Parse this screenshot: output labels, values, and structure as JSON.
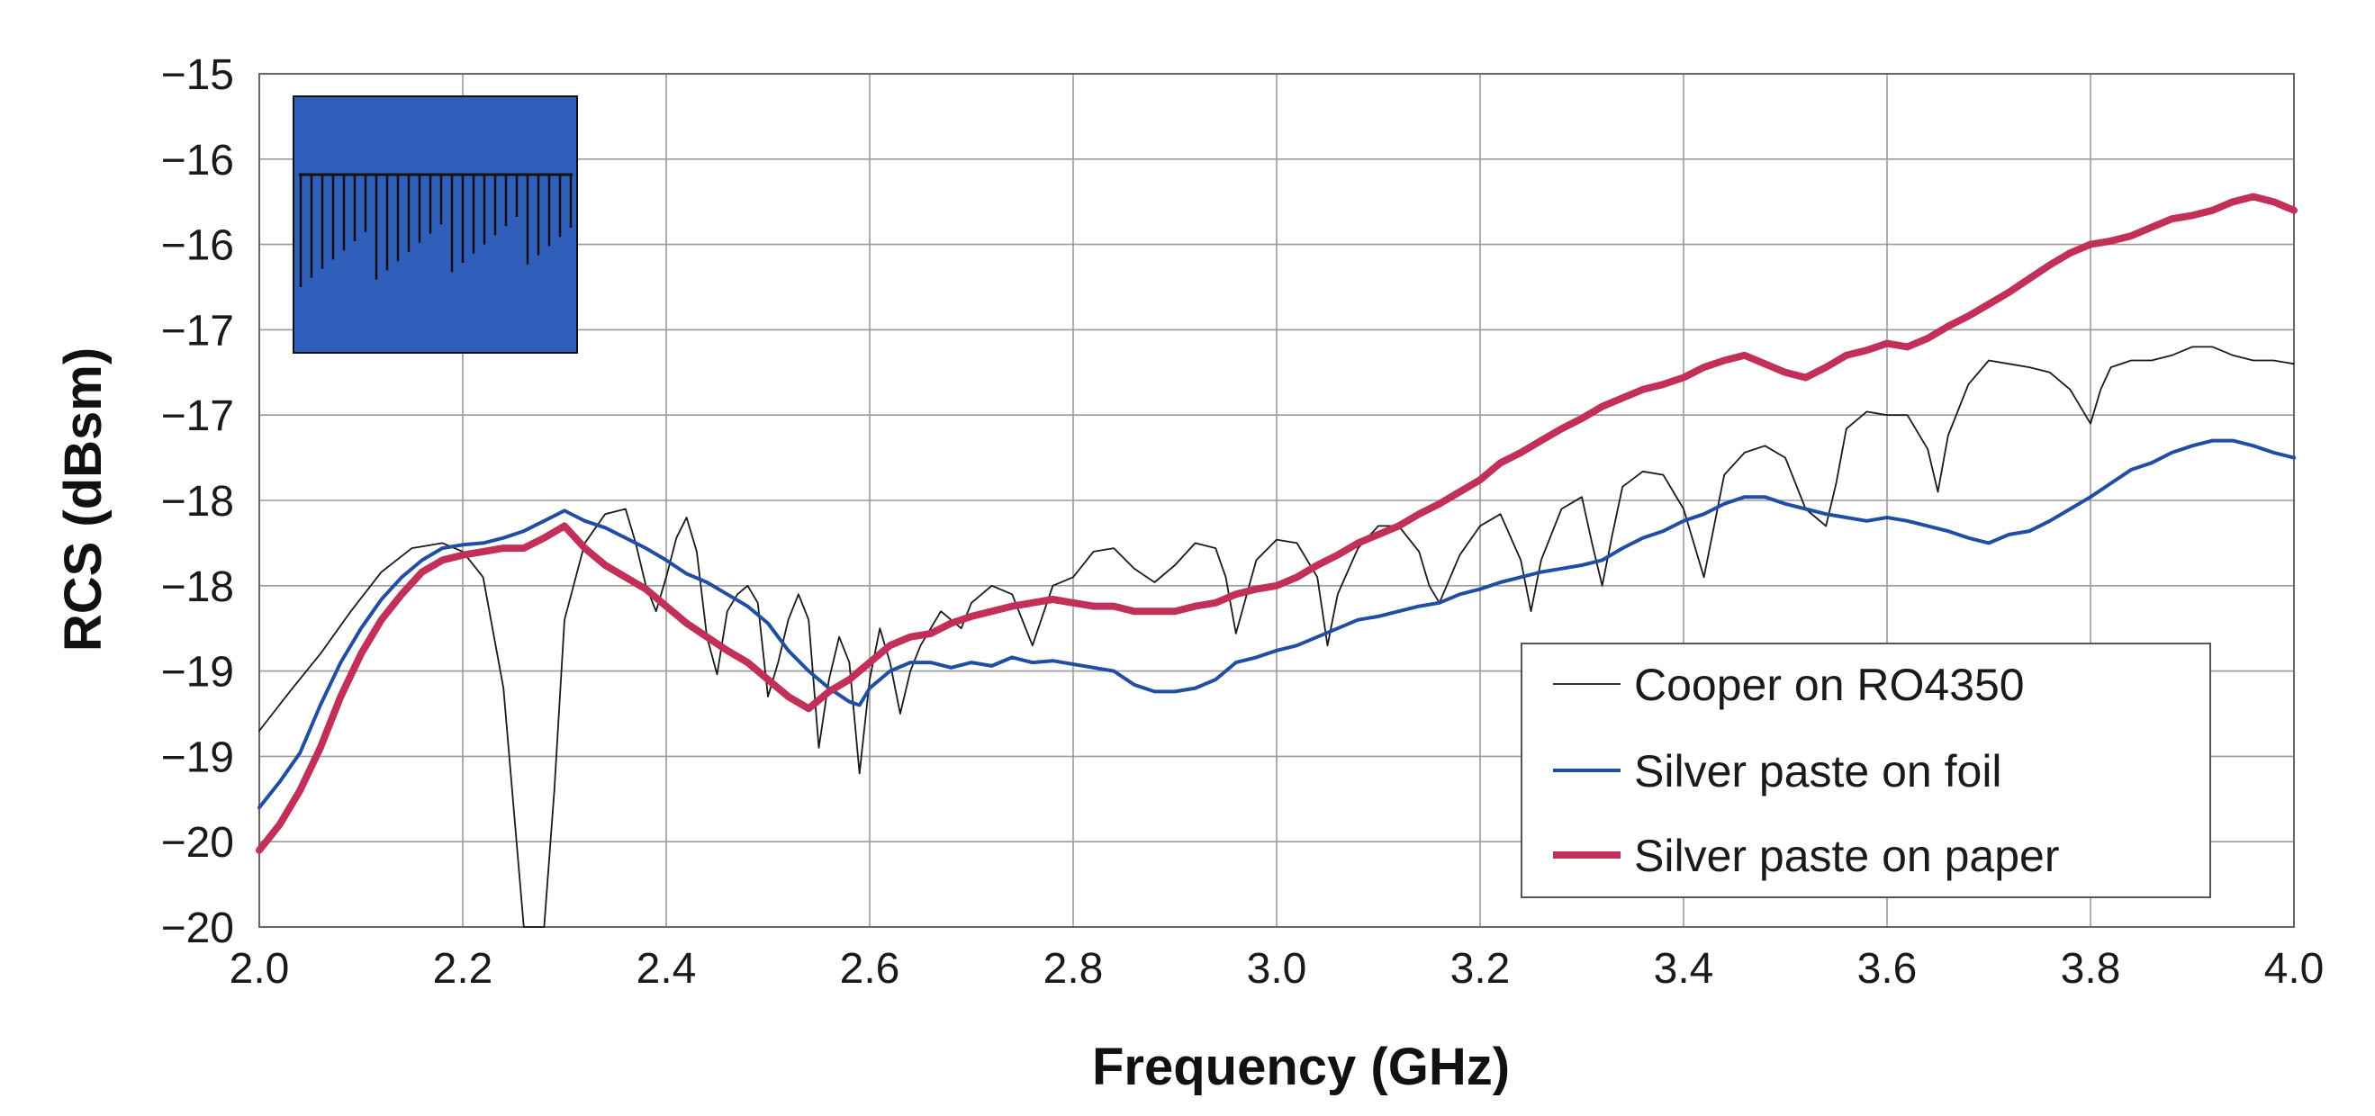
{
  "chart_data": {
    "type": "line",
    "xlabel": "Frequency (GHz)",
    "ylabel": "RCS (dBsm)",
    "xlim": [
      2.0,
      4.0
    ],
    "ylim": [
      -20,
      -15
    ],
    "x_ticks": [
      2.0,
      2.2,
      2.4,
      2.6,
      2.8,
      3.0,
      3.2,
      3.4,
      3.6,
      3.8,
      4.0
    ],
    "x_tick_labels": [
      "2.0",
      "2.2",
      "2.4",
      "2.6",
      "2.8",
      "3.0",
      "3.2",
      "3.4",
      "3.6",
      "3.8",
      "4.0"
    ],
    "y_tick_labels": [
      "−15",
      "−16",
      "−16",
      "−17",
      "−17",
      "−18",
      "−18",
      "−19",
      "−19",
      "−20",
      "−20"
    ],
    "grid": true,
    "legend_position": "bottom-right",
    "series": [
      {
        "name": "Cooper on RO4350",
        "color": "#1a1a1a",
        "line_width": "thin",
        "x": [
          2.0,
          2.03,
          2.06,
          2.09,
          2.12,
          2.15,
          2.18,
          2.2,
          2.22,
          2.24,
          2.25,
          2.26,
          2.27,
          2.28,
          2.29,
          2.3,
          2.32,
          2.34,
          2.36,
          2.37,
          2.38,
          2.39,
          2.4,
          2.41,
          2.42,
          2.43,
          2.44,
          2.45,
          2.46,
          2.47,
          2.48,
          2.49,
          2.5,
          2.51,
          2.52,
          2.53,
          2.54,
          2.55,
          2.56,
          2.57,
          2.58,
          2.59,
          2.6,
          2.61,
          2.62,
          2.63,
          2.64,
          2.65,
          2.67,
          2.69,
          2.7,
          2.72,
          2.74,
          2.76,
          2.78,
          2.8,
          2.82,
          2.84,
          2.86,
          2.88,
          2.9,
          2.92,
          2.94,
          2.95,
          2.96,
          2.98,
          3.0,
          3.02,
          3.04,
          3.05,
          3.06,
          3.08,
          3.1,
          3.12,
          3.14,
          3.15,
          3.16,
          3.18,
          3.2,
          3.22,
          3.24,
          3.25,
          3.26,
          3.28,
          3.3,
          3.31,
          3.32,
          3.33,
          3.34,
          3.36,
          3.38,
          3.4,
          3.42,
          3.43,
          3.44,
          3.46,
          3.48,
          3.5,
          3.52,
          3.54,
          3.55,
          3.56,
          3.58,
          3.6,
          3.62,
          3.64,
          3.65,
          3.66,
          3.68,
          3.7,
          3.72,
          3.74,
          3.76,
          3.78,
          3.8,
          3.81,
          3.82,
          3.84,
          3.86,
          3.88,
          3.9,
          3.92,
          3.94,
          3.96,
          3.98,
          4.0
        ],
        "y": [
          -18.85,
          -18.62,
          -18.4,
          -18.15,
          -17.92,
          -17.78,
          -17.75,
          -17.8,
          -17.95,
          -18.6,
          -19.3,
          -20.0,
          -20.05,
          -20.0,
          -19.2,
          -18.2,
          -17.75,
          -17.58,
          -17.55,
          -17.75,
          -18.0,
          -18.15,
          -17.95,
          -17.72,
          -17.6,
          -17.8,
          -18.3,
          -18.52,
          -18.15,
          -18.05,
          -18.0,
          -18.1,
          -18.65,
          -18.45,
          -18.2,
          -18.05,
          -18.2,
          -18.95,
          -18.55,
          -18.3,
          -18.45,
          -19.1,
          -18.55,
          -18.25,
          -18.45,
          -18.75,
          -18.5,
          -18.35,
          -18.15,
          -18.25,
          -18.1,
          -18.0,
          -18.05,
          -18.35,
          -18.0,
          -17.95,
          -17.8,
          -17.78,
          -17.9,
          -17.98,
          -17.88,
          -17.75,
          -17.78,
          -17.95,
          -18.28,
          -17.85,
          -17.73,
          -17.75,
          -17.95,
          -18.35,
          -18.05,
          -17.78,
          -17.65,
          -17.65,
          -17.8,
          -18.0,
          -18.1,
          -17.82,
          -17.65,
          -17.58,
          -17.85,
          -18.15,
          -17.85,
          -17.55,
          -17.48,
          -17.75,
          -18.0,
          -17.7,
          -17.42,
          -17.33,
          -17.35,
          -17.55,
          -17.95,
          -17.65,
          -17.35,
          -17.22,
          -17.18,
          -17.25,
          -17.55,
          -17.65,
          -17.4,
          -17.08,
          -16.98,
          -17.0,
          -17.0,
          -17.2,
          -17.45,
          -17.12,
          -16.82,
          -16.68,
          -16.7,
          -16.72,
          -16.75,
          -16.85,
          -17.05,
          -16.85,
          -16.72,
          -16.68,
          -16.68,
          -16.65,
          -16.6,
          -16.6,
          -16.65,
          -16.68,
          -16.68,
          -16.7
        ]
      },
      {
        "name": "Silver paste on foil",
        "color": "#1f4ea3",
        "line_width": "medium",
        "x": [
          2.0,
          2.02,
          2.04,
          2.06,
          2.08,
          2.1,
          2.12,
          2.14,
          2.16,
          2.18,
          2.2,
          2.22,
          2.24,
          2.26,
          2.28,
          2.3,
          2.32,
          2.34,
          2.36,
          2.38,
          2.4,
          2.42,
          2.44,
          2.46,
          2.48,
          2.5,
          2.52,
          2.54,
          2.56,
          2.58,
          2.59,
          2.6,
          2.62,
          2.64,
          2.66,
          2.68,
          2.7,
          2.72,
          2.74,
          2.76,
          2.78,
          2.8,
          2.82,
          2.84,
          2.86,
          2.88,
          2.9,
          2.92,
          2.94,
          2.96,
          2.98,
          3.0,
          3.02,
          3.04,
          3.06,
          3.08,
          3.1,
          3.12,
          3.14,
          3.16,
          3.18,
          3.2,
          3.22,
          3.24,
          3.26,
          3.28,
          3.3,
          3.32,
          3.34,
          3.36,
          3.38,
          3.4,
          3.42,
          3.44,
          3.46,
          3.48,
          3.5,
          3.52,
          3.54,
          3.56,
          3.58,
          3.6,
          3.62,
          3.64,
          3.66,
          3.68,
          3.7,
          3.72,
          3.74,
          3.76,
          3.78,
          3.8,
          3.82,
          3.84,
          3.86,
          3.88,
          3.9,
          3.92,
          3.94,
          3.96,
          3.98,
          4.0
        ],
        "y": [
          -19.3,
          -19.15,
          -18.98,
          -18.7,
          -18.45,
          -18.25,
          -18.08,
          -17.95,
          -17.85,
          -17.78,
          -17.76,
          -17.75,
          -17.72,
          -17.68,
          -17.62,
          -17.56,
          -17.62,
          -17.66,
          -17.72,
          -17.78,
          -17.85,
          -17.93,
          -17.98,
          -18.05,
          -18.12,
          -18.22,
          -18.38,
          -18.5,
          -18.6,
          -18.68,
          -18.7,
          -18.6,
          -18.5,
          -18.45,
          -18.45,
          -18.48,
          -18.45,
          -18.47,
          -18.42,
          -18.45,
          -18.44,
          -18.46,
          -18.48,
          -18.5,
          -18.58,
          -18.62,
          -18.62,
          -18.6,
          -18.55,
          -18.45,
          -18.42,
          -18.38,
          -18.35,
          -18.3,
          -18.25,
          -18.2,
          -18.18,
          -18.15,
          -18.12,
          -18.1,
          -18.05,
          -18.02,
          -17.98,
          -17.95,
          -17.92,
          -17.9,
          -17.88,
          -17.85,
          -17.78,
          -17.72,
          -17.68,
          -17.62,
          -17.58,
          -17.52,
          -17.48,
          -17.48,
          -17.52,
          -17.55,
          -17.58,
          -17.6,
          -17.62,
          -17.6,
          -17.62,
          -17.65,
          -17.68,
          -17.72,
          -17.75,
          -17.7,
          -17.68,
          -17.62,
          -17.55,
          -17.48,
          -17.4,
          -17.32,
          -17.28,
          -17.22,
          -17.18,
          -17.15,
          -17.15,
          -17.18,
          -17.22,
          -17.25
        ]
      },
      {
        "name": "Silver paste on paper",
        "color": "#c2305a",
        "line_width": "thick",
        "x": [
          2.0,
          2.02,
          2.04,
          2.06,
          2.08,
          2.1,
          2.12,
          2.14,
          2.16,
          2.18,
          2.2,
          2.22,
          2.24,
          2.26,
          2.28,
          2.3,
          2.32,
          2.34,
          2.36,
          2.38,
          2.4,
          2.42,
          2.44,
          2.46,
          2.48,
          2.5,
          2.52,
          2.54,
          2.56,
          2.58,
          2.6,
          2.62,
          2.64,
          2.66,
          2.68,
          2.7,
          2.72,
          2.74,
          2.76,
          2.78,
          2.8,
          2.82,
          2.84,
          2.86,
          2.88,
          2.9,
          2.92,
          2.94,
          2.96,
          2.98,
          3.0,
          3.02,
          3.04,
          3.06,
          3.08,
          3.1,
          3.12,
          3.14,
          3.16,
          3.18,
          3.2,
          3.22,
          3.24,
          3.26,
          3.28,
          3.3,
          3.32,
          3.34,
          3.36,
          3.38,
          3.4,
          3.42,
          3.44,
          3.46,
          3.48,
          3.5,
          3.52,
          3.54,
          3.56,
          3.58,
          3.6,
          3.62,
          3.64,
          3.66,
          3.68,
          3.7,
          3.72,
          3.74,
          3.76,
          3.78,
          3.8,
          3.82,
          3.84,
          3.86,
          3.88,
          3.9,
          3.92,
          3.94,
          3.96,
          3.98,
          4.0
        ],
        "y": [
          -19.55,
          -19.4,
          -19.2,
          -18.95,
          -18.65,
          -18.4,
          -18.2,
          -18.05,
          -17.92,
          -17.85,
          -17.82,
          -17.8,
          -17.78,
          -17.78,
          -17.72,
          -17.65,
          -17.78,
          -17.88,
          -17.95,
          -18.02,
          -18.12,
          -18.22,
          -18.3,
          -18.38,
          -18.45,
          -18.55,
          -18.65,
          -18.72,
          -18.62,
          -18.55,
          -18.45,
          -18.35,
          -18.3,
          -18.28,
          -18.22,
          -18.18,
          -18.15,
          -18.12,
          -18.1,
          -18.08,
          -18.1,
          -18.12,
          -18.12,
          -18.15,
          -18.15,
          -18.15,
          -18.12,
          -18.1,
          -18.05,
          -18.02,
          -18.0,
          -17.95,
          -17.88,
          -17.82,
          -17.75,
          -17.7,
          -17.65,
          -17.58,
          -17.52,
          -17.45,
          -17.38,
          -17.28,
          -17.22,
          -17.15,
          -17.08,
          -17.02,
          -16.95,
          -16.9,
          -16.85,
          -16.82,
          -16.78,
          -16.72,
          -16.68,
          -16.65,
          -16.7,
          -16.75,
          -16.78,
          -16.72,
          -16.65,
          -16.62,
          -16.58,
          -16.6,
          -16.55,
          -16.48,
          -16.42,
          -16.35,
          -16.28,
          -16.2,
          -16.12,
          -16.05,
          -16.0,
          -15.98,
          -15.95,
          -15.9,
          -15.85,
          -15.83,
          -15.8,
          -15.75,
          -15.72,
          -15.75,
          -15.8
        ]
      }
    ],
    "inset": {
      "kind": "schematic",
      "background_color": "#2f5fba",
      "line_color": "#111111",
      "element_count": 26
    }
  }
}
